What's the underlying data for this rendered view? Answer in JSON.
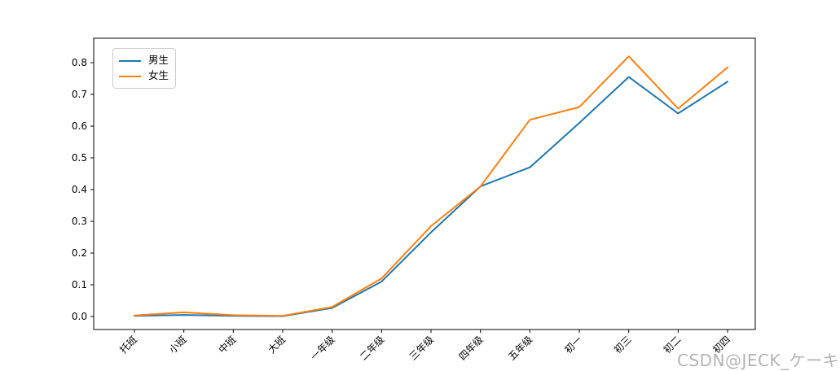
{
  "watermark": "CSDN@JECK_ケーキ",
  "colors": {
    "background": "#ffffff",
    "axis": "#000000",
    "tick_label": "#000000",
    "legend_border": "#cccccc",
    "watermark": "#b3b3b3",
    "series_male": "#1f77b4",
    "series_female": "#ff7f0e"
  },
  "chart_data": {
    "type": "line",
    "title": "",
    "xlabel": "",
    "ylabel": "",
    "grid": false,
    "legend_position": "upper left",
    "x_tick_rotation": 45,
    "categories": [
      "托班",
      "小班",
      "中班",
      "大班",
      "一年级",
      "二年级",
      "三年级",
      "四年级",
      "五年级",
      "初一",
      "初三",
      "初二",
      "初四"
    ],
    "yticks": [
      0.0,
      0.1,
      0.2,
      0.3,
      0.4,
      0.5,
      0.6,
      0.7,
      0.8
    ],
    "ylim": [
      -0.04,
      0.877
    ],
    "series": [
      {
        "name": "男生",
        "color": "#1f77b4",
        "values": [
          0.002,
          0.005,
          0.002,
          0.001,
          0.027,
          0.11,
          0.265,
          0.41,
          0.47,
          0.61,
          0.755,
          0.64,
          0.74
        ]
      },
      {
        "name": "女生",
        "color": "#ff7f0e",
        "values": [
          0.003,
          0.013,
          0.004,
          0.002,
          0.03,
          0.12,
          0.285,
          0.41,
          0.62,
          0.66,
          0.82,
          0.655,
          0.785
        ]
      }
    ]
  }
}
